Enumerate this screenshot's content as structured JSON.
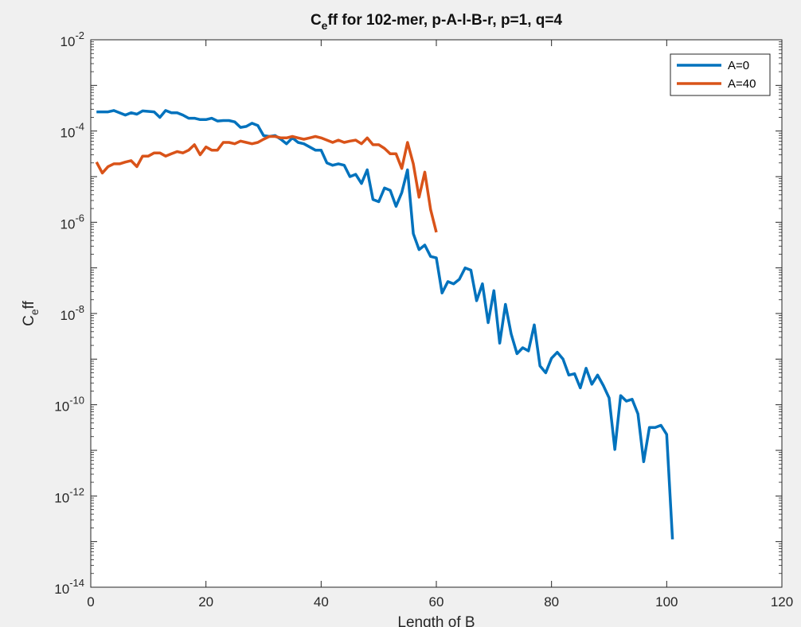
{
  "chart_data": {
    "type": "line",
    "title": "C_eff for 102-mer, p-A-l-B-r, p=1, q=4",
    "title_parts": {
      "main": "C",
      "sub": "e",
      "rest": "ff for 102-mer, p-A-l-B-r, p=1, q=4"
    },
    "xlabel": "Length of B",
    "ylabel_parts": {
      "main": "C",
      "sub": "e",
      "rest": "ff"
    },
    "xlim": [
      0,
      120
    ],
    "ylim_exponent": [
      -14,
      -2
    ],
    "yscale": "log",
    "x_ticks": [
      0,
      20,
      40,
      60,
      80,
      100,
      120
    ],
    "y_tick_exponents": [
      -14,
      -12,
      -10,
      -8,
      -6,
      -4,
      -2
    ],
    "grid": false,
    "legend_position": "top-right",
    "series": [
      {
        "name": "A=0",
        "color": "#0072BD",
        "x": [
          1,
          2,
          3,
          4,
          5,
          6,
          7,
          8,
          9,
          10,
          11,
          12,
          13,
          14,
          15,
          16,
          17,
          18,
          19,
          20,
          21,
          22,
          23,
          24,
          25,
          26,
          27,
          28,
          29,
          30,
          31,
          32,
          33,
          34,
          35,
          36,
          37,
          38,
          39,
          40,
          41,
          42,
          43,
          44,
          45,
          46,
          47,
          48,
          49,
          50,
          51,
          52,
          53,
          54,
          55,
          56,
          57,
          58,
          59,
          60,
          61,
          62,
          63,
          64,
          65,
          66,
          67,
          68,
          69,
          70,
          71,
          72,
          73,
          74,
          75,
          76,
          77,
          78,
          79,
          80,
          81,
          82,
          83,
          84,
          85,
          86,
          87,
          88,
          89,
          90,
          91,
          92,
          93,
          94,
          95,
          96,
          97,
          98,
          99,
          100,
          101
        ],
        "log10_y": [
          -3.58,
          -3.58,
          -3.58,
          -3.55,
          -3.6,
          -3.65,
          -3.6,
          -3.63,
          -3.56,
          -3.57,
          -3.58,
          -3.7,
          -3.55,
          -3.6,
          -3.6,
          -3.65,
          -3.72,
          -3.72,
          -3.75,
          -3.75,
          -3.72,
          -3.78,
          -3.77,
          -3.77,
          -3.8,
          -3.92,
          -3.9,
          -3.83,
          -3.88,
          -4.1,
          -4.12,
          -4.1,
          -4.18,
          -4.28,
          -4.15,
          -4.25,
          -4.28,
          -4.35,
          -4.42,
          -4.42,
          -4.7,
          -4.75,
          -4.72,
          -4.75,
          -5.0,
          -4.95,
          -5.15,
          -4.85,
          -5.5,
          -5.55,
          -5.25,
          -5.3,
          -5.65,
          -5.35,
          -4.85,
          -6.25,
          -6.6,
          -6.5,
          -6.75,
          -6.78,
          -7.55,
          -7.3,
          -7.35,
          -7.25,
          -7.0,
          -7.05,
          -7.72,
          -7.35,
          -8.2,
          -7.5,
          -8.65,
          -7.8,
          -8.45,
          -8.88,
          -8.75,
          -8.82,
          -8.25,
          -9.15,
          -9.3,
          -8.98,
          -8.85,
          -9.0,
          -9.35,
          -9.32,
          -9.63,
          -9.2,
          -9.55,
          -9.35,
          -9.58,
          -9.85,
          -10.98,
          -9.8,
          -9.92,
          -9.88,
          -10.2,
          -11.25,
          -10.5,
          -10.5,
          -10.45,
          -10.65,
          -12.95
        ]
      },
      {
        "name": "A=40",
        "color": "#D95319",
        "x": [
          1,
          2,
          3,
          4,
          5,
          6,
          7,
          8,
          9,
          10,
          11,
          12,
          13,
          14,
          15,
          16,
          17,
          18,
          19,
          20,
          21,
          22,
          23,
          24,
          25,
          26,
          27,
          28,
          29,
          30,
          31,
          32,
          33,
          34,
          35,
          36,
          37,
          38,
          39,
          40,
          41,
          42,
          43,
          44,
          45,
          46,
          47,
          48,
          49,
          50,
          51,
          52,
          53,
          54,
          55,
          56,
          57,
          58,
          59,
          60,
          61
        ],
        "log10_y": [
          -4.68,
          -4.92,
          -4.78,
          -4.72,
          -4.72,
          -4.68,
          -4.65,
          -4.78,
          -4.55,
          -4.55,
          -4.48,
          -4.48,
          -4.55,
          -4.5,
          -4.45,
          -4.48,
          -4.42,
          -4.3,
          -4.52,
          -4.35,
          -4.42,
          -4.42,
          -4.25,
          -4.25,
          -4.28,
          -4.22,
          -4.25,
          -4.28,
          -4.25,
          -4.18,
          -4.12,
          -4.12,
          -4.15,
          -4.15,
          -4.12,
          -4.15,
          -4.18,
          -4.15,
          -4.12,
          -4.15,
          -4.2,
          -4.25,
          -4.2,
          -4.25,
          -4.22,
          -4.2,
          -4.28,
          -4.15,
          -4.3,
          -4.3,
          -4.38,
          -4.5,
          -4.5,
          -4.82,
          -4.25,
          -4.72,
          -5.45,
          -4.9,
          -5.72,
          -6.22
        ]
      }
    ]
  }
}
